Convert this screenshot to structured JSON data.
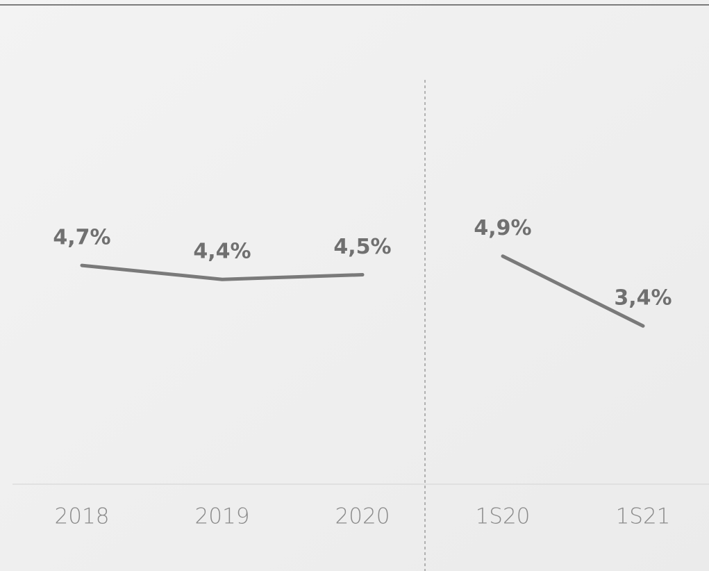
{
  "chart_data": {
    "type": "line",
    "categories": [
      "2018",
      "2019",
      "2020",
      "1S20",
      "1S21"
    ],
    "series": [
      {
        "color": "#7a7a7a",
        "values": [
          4.7,
          4.4,
          4.5,
          null,
          null
        ],
        "value_labels": [
          "4,7%",
          "4,4%",
          "4,5%",
          null,
          null
        ]
      },
      {
        "color": "#7a7a7a",
        "values": [
          null,
          null,
          null,
          4.9,
          3.4
        ],
        "value_labels": [
          null,
          null,
          null,
          "4,9%",
          "3,4%"
        ]
      }
    ],
    "ylim": [
      0,
      10
    ]
  }
}
